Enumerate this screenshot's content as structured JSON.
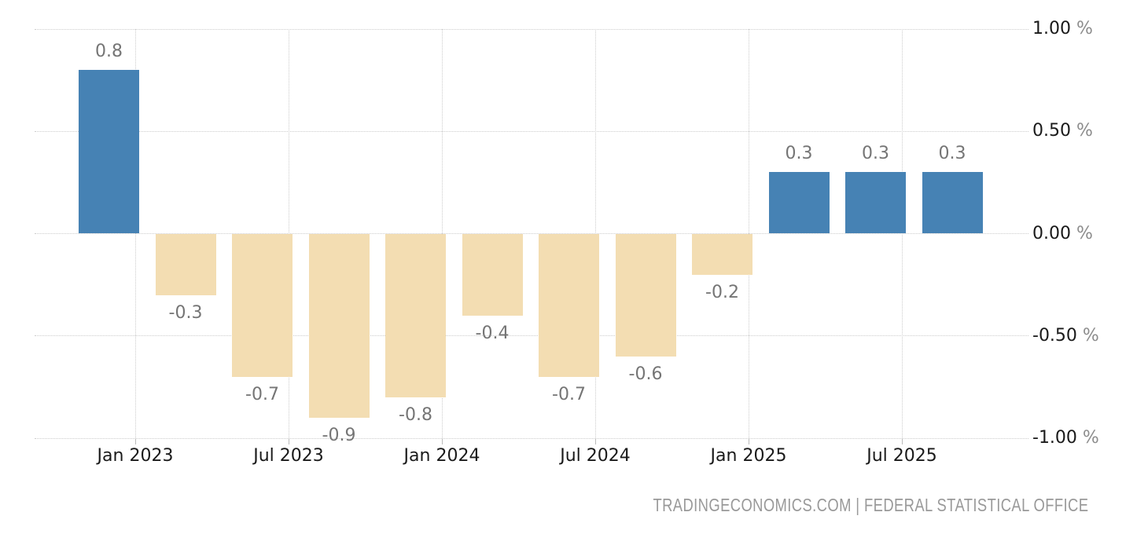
{
  "chart_data": {
    "type": "bar",
    "title": "",
    "unit": "%",
    "values": [
      0.8,
      -0.3,
      -0.7,
      -0.9,
      -0.8,
      -0.4,
      -0.7,
      -0.6,
      -0.2,
      0.3,
      0.3,
      0.3
    ],
    "bar_labels": [
      "0.8",
      "-0.3",
      "-0.7",
      "-0.9",
      "-0.8",
      "-0.4",
      "-0.7",
      "-0.6",
      "-0.2",
      "0.3",
      "0.3",
      "0.3"
    ],
    "x_tick_labels": [
      "Jan 2023",
      "Jul 2023",
      "Jan 2024",
      "Jul 2024",
      "Jan 2025",
      "Jul 2025"
    ],
    "y_tick_labels": [
      "1.00",
      "0.50",
      "0.00",
      "-0.50",
      "-1.00"
    ],
    "y_tick_suffix": "%",
    "ylim": [
      -1.0,
      1.0
    ],
    "grid": "dotted",
    "legend": "none",
    "bars_per_x_tick": 2,
    "colors": {
      "positive_bar": "#4682b4",
      "negative_bar": "#f3ddb2",
      "data_label": "#757575",
      "axis_label": "#1a1a1a",
      "percent_suffix": "#8c8c8c",
      "gridline": "#cccccc",
      "attribution": "#999999"
    }
  },
  "attribution": {
    "text": "TRADINGECONOMICS.COM | FEDERAL STATISTICAL OFFICE"
  }
}
